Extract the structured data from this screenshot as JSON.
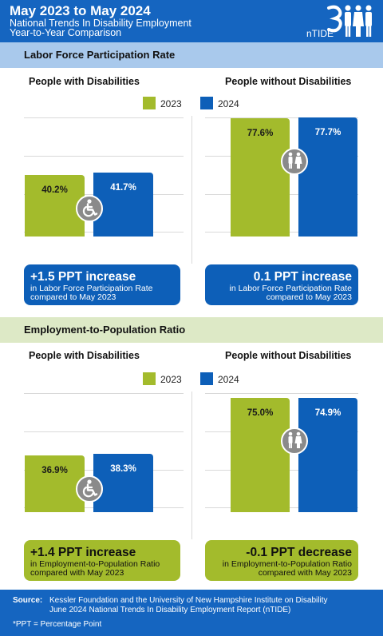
{
  "header": {
    "title": "May 2023 to May 2024",
    "subtitle1": "National Trends In Disability Employment",
    "subtitle2": "Year-to-Year Comparison",
    "logo_text": "nTIDE"
  },
  "legend": {
    "y2023": "2023",
    "y2024": "2024"
  },
  "colors": {
    "y2023": "#a3bb2c",
    "y2024": "#0d5fb8",
    "header": "#1565c0"
  },
  "sections": [
    {
      "title": "Labor Force Participation Rate",
      "left_heading": "People with Disabilities",
      "right_heading": "People without Disabilities",
      "left_summary": {
        "big": "+1.5 PPT increase",
        "line1": "in Labor Force Participation Rate",
        "line2": "compared to May 2023"
      },
      "right_summary": {
        "big": "0.1 PPT increase",
        "line1": "in Labor Force Participation Rate",
        "line2": "compared to May 2023"
      }
    },
    {
      "title": "Employment-to-Population Ratio",
      "left_heading": "People with Disabilities",
      "right_heading": "People without Disabilities",
      "left_summary": {
        "big": "+1.4 PPT increase",
        "line1": "in Employment-to-Population Ratio",
        "line2": "compared with May 2023"
      },
      "right_summary": {
        "big": "-0.1 PPT decrease",
        "line1": "in Employment-to-Population Ratio",
        "line2": "compared with May 2023"
      }
    }
  ],
  "chart_data": [
    {
      "type": "bar",
      "title": "Labor Force Participation Rate",
      "categories": [
        "People with Disabilities",
        "People without Disabilities"
      ],
      "series": [
        {
          "name": "2023",
          "values": [
            40.2,
            77.6
          ],
          "labels": [
            "40.2%",
            "77.6%"
          ]
        },
        {
          "name": "2024",
          "values": [
            41.7,
            77.7
          ],
          "labels": [
            "41.7%",
            "77.7%"
          ]
        }
      ],
      "legend_position": "top-right",
      "grid": true
    },
    {
      "type": "bar",
      "title": "Employment-to-Population Ratio",
      "categories": [
        "People with Disabilities",
        "People without Disabilities"
      ],
      "series": [
        {
          "name": "2023",
          "values": [
            36.9,
            75.0
          ],
          "labels": [
            "36.9%",
            "75.0%"
          ]
        },
        {
          "name": "2024",
          "values": [
            38.3,
            74.9
          ],
          "labels": [
            "38.3%",
            "74.9%"
          ]
        }
      ],
      "legend_position": "top-right",
      "grid": true
    }
  ],
  "icons": {
    "disability": "wheelchair-icon",
    "no_disability": "people-icon"
  },
  "footer": {
    "source_label": "Source:",
    "source_line1": "Kessler Foundation and the University of New Hampshire Institute on Disability",
    "source_line2": "June 2024 National Trends In Disability Employment Report (nTIDE)",
    "ppt_note": "*PPT = Percentage Point"
  }
}
